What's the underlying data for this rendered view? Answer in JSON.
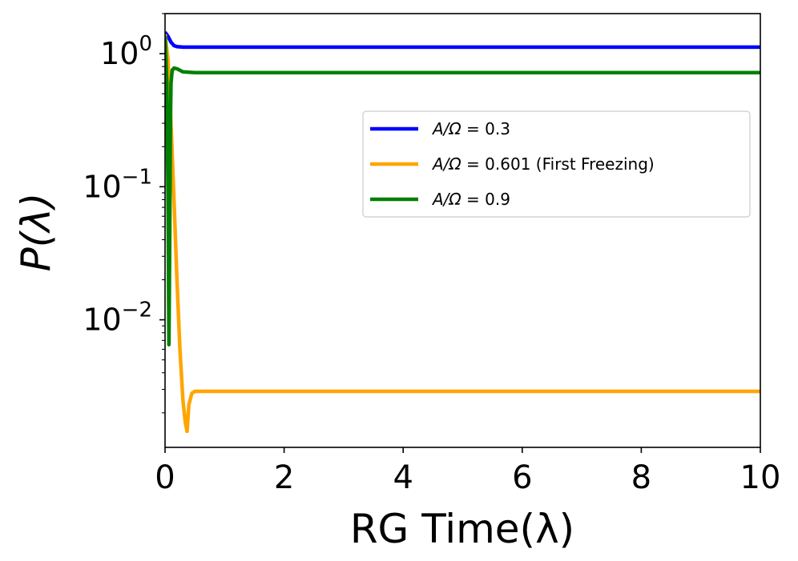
{
  "chart_data": {
    "type": "line",
    "xlabel": "RG Time(λ)",
    "ylabel": "P(λ)",
    "xlim": [
      0,
      10
    ],
    "ylim": [
      0.0011,
      2.0
    ],
    "yscale": "log",
    "grid": false,
    "legend_position": "center-right",
    "x_ticks": [
      {
        "value": 0,
        "label": "0"
      },
      {
        "value": 2,
        "label": "2"
      },
      {
        "value": 4,
        "label": "4"
      },
      {
        "value": 6,
        "label": "6"
      },
      {
        "value": 8,
        "label": "8"
      },
      {
        "value": 10,
        "label": "10"
      }
    ],
    "y_ticks": [
      {
        "value": 1,
        "base": "10",
        "exp": "0"
      },
      {
        "value": 0.1,
        "base": "10",
        "exp": "−1"
      },
      {
        "value": 0.01,
        "base": "10",
        "exp": "−2"
      }
    ],
    "series": [
      {
        "name": "A/Ω = 0.3",
        "legend_var": "A/Ω",
        "legend_value": " = 0.3",
        "color": "#0000ff",
        "x": [
          0,
          0.05,
          0.1,
          0.15,
          0.2,
          0.3,
          0.5,
          1,
          2,
          4,
          6,
          8,
          10
        ],
        "y": [
          1.45,
          1.35,
          1.22,
          1.15,
          1.13,
          1.12,
          1.12,
          1.12,
          1.12,
          1.12,
          1.12,
          1.12,
          1.12
        ]
      },
      {
        "name": "A/Ω = 0.601 (First Freezing)",
        "legend_var": "A/Ω",
        "legend_value": " = 0.601 (First Freezing)",
        "color": "#ffa500",
        "x": [
          0,
          0.05,
          0.1,
          0.15,
          0.2,
          0.25,
          0.3,
          0.34,
          0.37,
          0.4,
          0.45,
          0.5,
          0.6,
          0.8,
          1,
          2,
          4,
          6,
          8,
          10
        ],
        "y": [
          1.4,
          0.9,
          0.3,
          0.08,
          0.02,
          0.006,
          0.0025,
          0.0017,
          0.00145,
          0.0023,
          0.0028,
          0.0029,
          0.0029,
          0.0029,
          0.0029,
          0.0029,
          0.0029,
          0.0029,
          0.0029,
          0.0029
        ]
      },
      {
        "name": "A/Ω = 0.9",
        "legend_var": "A/Ω",
        "legend_value": " = 0.9",
        "color": "#008000",
        "x": [
          0,
          0.03,
          0.05,
          0.065,
          0.08,
          0.09,
          0.1,
          0.12,
          0.15,
          0.2,
          0.3,
          0.5,
          1,
          2,
          4,
          6,
          8,
          10
        ],
        "y": [
          1.35,
          0.6,
          0.08,
          0.0065,
          0.05,
          0.3,
          0.6,
          0.75,
          0.78,
          0.77,
          0.73,
          0.72,
          0.72,
          0.72,
          0.72,
          0.72,
          0.72,
          0.72
        ]
      }
    ]
  }
}
